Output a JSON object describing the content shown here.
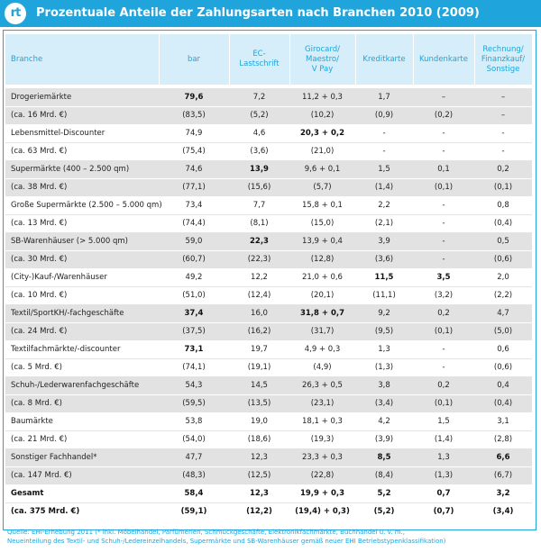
{
  "title": "Prozentuale Anteile der Zahlungsarten nach Branchen 2010 (2009)",
  "logo_text": "rt",
  "columns": [
    "Branche",
    "bar",
    "EC-\nLastschrift",
    "Girocard/\nMaestro/\nV Pay",
    "Kreditkarte",
    "Kundenkarte",
    "Rechnung/\nFinanzkauf/\nSonstige"
  ],
  "rows": [
    {
      "label": "Drogeriemärkte",
      "values": [
        "79,6",
        "7,2",
        "11,2 + 0,3",
        "1,7",
        "–",
        "–"
      ],
      "bold": [
        0
      ],
      "sub_label": "(ca. 16 Mrd. €)",
      "sub_values": [
        "(83,5)",
        "(5,2)",
        "(10,2)",
        "(0,9)",
        "(0,2)",
        "–"
      ]
    },
    {
      "label": "Lebensmittel-Discounter",
      "values": [
        "74,9",
        "4,6",
        "20,3 + 0,2",
        "-",
        "-",
        "-"
      ],
      "bold": [
        2
      ],
      "sub_label": "(ca. 63 Mrd. €)",
      "sub_values": [
        "(75,4)",
        "(3,6)",
        "(21,0)",
        "-",
        "-",
        "-"
      ]
    },
    {
      "label": "Supermärkte (400 – 2.500 qm)",
      "values": [
        "74,6",
        "13,9",
        "9,6 + 0,1",
        "1,5",
        "0,1",
        "0,2"
      ],
      "bold": [
        1
      ],
      "sub_label": "(ca. 38 Mrd. €)",
      "sub_values": [
        "(77,1)",
        "(15,6)",
        "(5,7)",
        "(1,4)",
        "(0,1)",
        "(0,1)"
      ]
    },
    {
      "label": "Große Supermärkte (2.500 – 5.000 qm)",
      "values": [
        "73,4",
        "7,7",
        "15,8 + 0,1",
        "2,2",
        "-",
        "0,8"
      ],
      "bold": [],
      "sub_label": "(ca. 13 Mrd. €)",
      "sub_values": [
        "(74,4)",
        "(8,1)",
        "(15,0)",
        "(2,1)",
        "-",
        "(0,4)"
      ]
    },
    {
      "label": "SB-Warenhäuser (> 5.000 qm)",
      "values": [
        "59,0",
        "22,3",
        "13,9 + 0,4",
        "3,9",
        "-",
        "0,5"
      ],
      "bold": [
        1
      ],
      "sub_label": "(ca. 30 Mrd. €)",
      "sub_values": [
        "(60,7)",
        "(22,3)",
        "(12,8)",
        "(3,6)",
        "-",
        "(0,6)"
      ]
    },
    {
      "label": "(City-)Kauf-/Warenhäuser",
      "values": [
        "49,2",
        "12,2",
        "21,0 + 0,6",
        "11,5",
        "3,5",
        "2,0"
      ],
      "bold": [
        3,
        4
      ],
      "sub_label": "(ca. 10 Mrd. €)",
      "sub_values": [
        "(51,0)",
        "(12,4)",
        "(20,1)",
        "(11,1)",
        "(3,2)",
        "(2,2)"
      ]
    },
    {
      "label": "Textil/SportKH/-fachgeschäfte",
      "values": [
        "37,4",
        "16,0",
        "31,8 + 0,7",
        "9,2",
        "0,2",
        "4,7"
      ],
      "bold": [
        0,
        2
      ],
      "sub_label": "(ca. 24 Mrd. €)",
      "sub_values": [
        "(37,5)",
        "(16,2)",
        "(31,7)",
        "(9,5)",
        "(0,1)",
        "(5,0)"
      ]
    },
    {
      "label": "Textilfachmärkte/-discounter",
      "values": [
        "73,1",
        "19,7",
        "4,9 + 0,3",
        "1,3",
        "-",
        "0,6"
      ],
      "bold": [
        0
      ],
      "sub_label": "(ca. 5 Mrd. €)",
      "sub_values": [
        "(74,1)",
        "(19,1)",
        "(4,9)",
        "(1,3)",
        "-",
        "(0,6)"
      ]
    },
    {
      "label": "Schuh-/Lederwarenfachgeschäfte",
      "values": [
        "54,3",
        "14,5",
        "26,3 + 0,5",
        "3,8",
        "0,2",
        "0,4"
      ],
      "bold": [],
      "sub_label": "(ca. 8 Mrd. €)",
      "sub_values": [
        "(59,5)",
        "(13,5)",
        "(23,1)",
        "(3,4)",
        "(0,1)",
        "(0,4)"
      ]
    },
    {
      "label": "Baumärkte",
      "values": [
        "53,8",
        "19,0",
        "18,1 + 0,3",
        "4,2",
        "1,5",
        "3,1"
      ],
      "bold": [],
      "sub_label": "(ca. 21 Mrd. €)",
      "sub_values": [
        "(54,0)",
        "(18,6)",
        "(19,3)",
        "(3,9)",
        "(1,4)",
        "(2,8)"
      ]
    },
    {
      "label": "Sonstiger Fachhandel*",
      "values": [
        "47,7",
        "12,3",
        "23,3 + 0,3",
        "8,5",
        "1,3",
        "6,6"
      ],
      "bold": [
        3,
        5
      ],
      "sub_label": "(ca. 147 Mrd. €)",
      "sub_values": [
        "(48,3)",
        "(12,5)",
        "(22,8)",
        "(8,4)",
        "(1,3)",
        "(6,7)"
      ]
    },
    {
      "label": "Gesamt",
      "values": [
        "58,4",
        "12,3",
        "19,9 + 0,3",
        "5,2",
        "0,7",
        "3,2"
      ],
      "bold": [
        0,
        1,
        2,
        3,
        4,
        5
      ],
      "label_bold": true,
      "sub_label": "(ca. 375 Mrd. €)",
      "sub_values": [
        "(59,1)",
        "(12,2)",
        "(19,4) + 0,3)",
        "(5,2)",
        "(0,7)",
        "(3,4)"
      ]
    }
  ],
  "source_line1": "Quelle: EHI-Erhebung 2011 (* inkl. Möbelhandel, Parfümerien, Schmuckgeschäfte, Elektronikfachmärkte, Buchhandel u. v. m.,",
  "source_line2": "Neueinteilung des Textil- und Schuh-/Ledereinzelhandels, Supermärkte und SB-Warenhäuser gemäß neuer EHI Betriebstypenklassifikation)",
  "colors": {
    "accent": "#1fa4dc",
    "header_bg": "#d5eef9",
    "row_shade": "#e2e2e2"
  }
}
